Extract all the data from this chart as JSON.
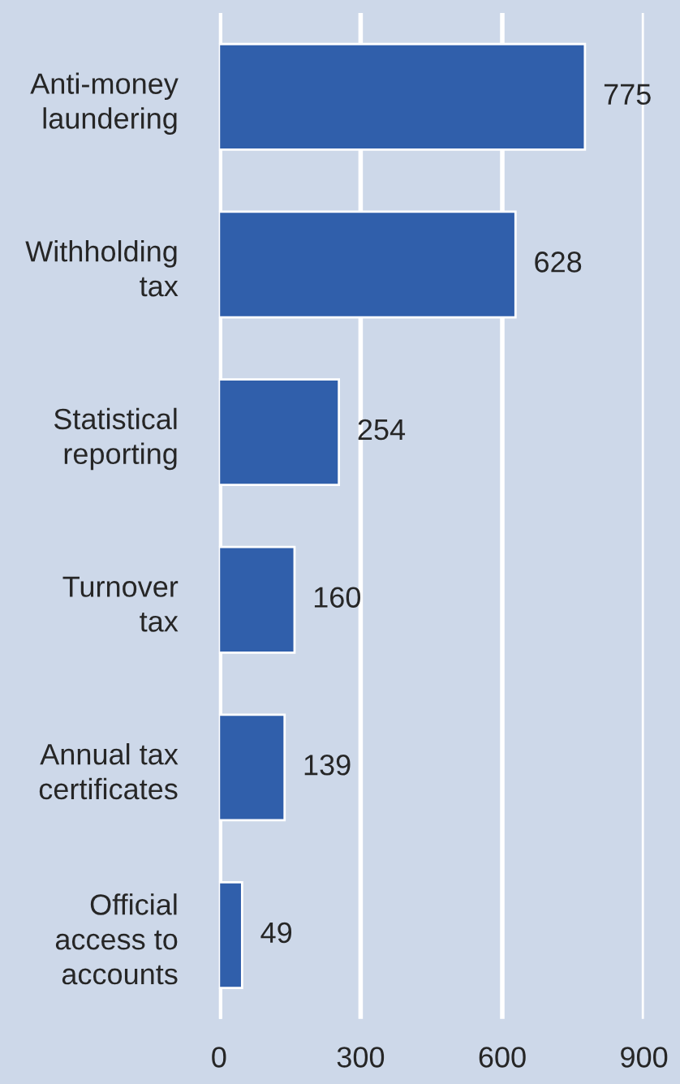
{
  "chart_data": {
    "type": "bar",
    "orientation": "horizontal",
    "categories": [
      "Anti-money\nlaundering",
      "Withholding\ntax",
      "Statistical\nreporting",
      "Turnover\ntax",
      "Annual tax\ncertificates",
      "Official\naccess to\naccounts"
    ],
    "values": [
      775,
      628,
      254,
      160,
      139,
      49
    ],
    "color": "#305fab",
    "xlim": [
      0,
      900
    ],
    "xticks": [
      0,
      300,
      600,
      900
    ],
    "grid": "x",
    "data_labels": true
  }
}
